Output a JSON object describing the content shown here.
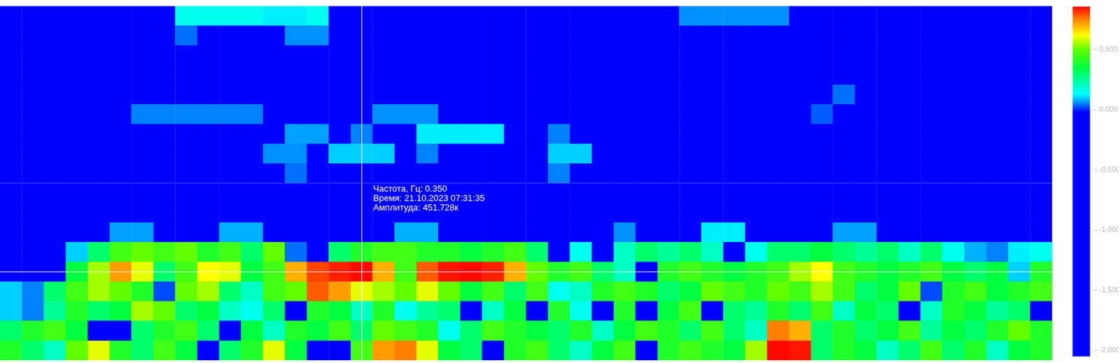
{
  "chart_data": {
    "type": "heatmap",
    "tick_labels": false,
    "grid": false,
    "categories": [
      null,
      null,
      null,
      null,
      null,
      null,
      null,
      null,
      null,
      null,
      null,
      null,
      null,
      null,
      null,
      null,
      null,
      null,
      null,
      null,
      null,
      null,
      null,
      null,
      null,
      null,
      null,
      null,
      null,
      null,
      null,
      null,
      null,
      null,
      null,
      null,
      null,
      null,
      null,
      null,
      null,
      null,
      null,
      null,
      null,
      null,
      null,
      null
    ],
    "y": [
      0.05,
      0.125,
      0.2,
      0.275,
      0.35,
      0.425,
      0.5,
      0.575,
      0.65,
      0.725,
      0.8,
      0.875,
      0.95,
      1.025,
      1.1,
      1.175,
      1.25,
      1.325
    ],
    "ylim": [
      0.0125,
      1.3625
    ],
    "cells": [
      [
        0.4,
        0.3,
        0.2,
        0.5,
        0.6,
        0.4,
        0.3,
        0.45,
        0.35,
        -1,
        0.3,
        0.4,
        0.6,
        0.35,
        -1,
        -1,
        0.45,
        0.72,
        0.75,
        0.6,
        0.35,
        0.3,
        -1,
        0.4,
        0.45,
        0.3,
        0.2,
        0.35,
        0.45,
        -1,
        0.4,
        0.45,
        0.4,
        0.35,
        0.55,
        0.85,
        0.84,
        0.3,
        0.4,
        0.35,
        0.2,
        0.3,
        0.45,
        0.3,
        0.4,
        0.2,
        0.35,
        0.4
      ],
      [
        0.3,
        0.4,
        0.45,
        0.35,
        -1,
        -1,
        0.3,
        0.4,
        0.45,
        0.3,
        -1,
        0.35,
        0.2,
        0.4,
        0.35,
        0.45,
        0.3,
        0.5,
        0.45,
        0.4,
        0.15,
        0.3,
        0.45,
        0.4,
        0.35,
        0.3,
        0.4,
        0.2,
        0.35,
        0.45,
        0.4,
        0.3,
        0.45,
        0.3,
        0.2,
        0.75,
        0.7,
        0.3,
        0.4,
        0.3,
        0.35,
        0.45,
        0.25,
        0.35,
        0.3,
        0.4,
        0.5,
        0.4
      ],
      [
        0.1,
        0.05,
        0.25,
        0.4,
        0.3,
        0.35,
        0.55,
        0.5,
        0.3,
        0.35,
        0.2,
        0.15,
        0.3,
        -1,
        0.4,
        0.35,
        0.2,
        0.4,
        0.15,
        0.25,
        0.3,
        -1,
        0.2,
        0.35,
        -1,
        0.4,
        0.15,
        -1,
        0.4,
        -1,
        0.35,
        0.45,
        -1,
        0.3,
        0.25,
        0.4,
        0.3,
        0.45,
        0.2,
        0.35,
        0.3,
        -1,
        0.2,
        0.4,
        0.35,
        0.25,
        0.3,
        -1
      ],
      [
        0.1,
        0.05,
        0.3,
        0.45,
        0.55,
        0.5,
        0.4,
        0.02,
        0.5,
        0.55,
        0.3,
        0.2,
        0.45,
        0.5,
        0.78,
        0.72,
        0.6,
        0.55,
        0.5,
        0.6,
        0.5,
        0.35,
        0.45,
        0.3,
        0.45,
        0.15,
        0.2,
        0.4,
        0.45,
        0.4,
        0.3,
        0.35,
        0.5,
        0.45,
        0.4,
        0.5,
        0.45,
        0.55,
        0.45,
        0.3,
        0.35,
        0.5,
        0.02,
        0.4,
        0.45,
        0.35,
        0.4,
        0.45
      ],
      [
        -1,
        -1,
        -1,
        0.35,
        0.55,
        0.72,
        0.6,
        0.3,
        0.45,
        0.62,
        0.6,
        0.35,
        0.45,
        0.7,
        0.8,
        0.83,
        0.85,
        0.7,
        0.45,
        0.78,
        0.84,
        0.85,
        0.83,
        0.7,
        0.5,
        0.4,
        0.45,
        0.3,
        0.2,
        -1,
        0.4,
        0.45,
        0.4,
        0.35,
        0.4,
        0.45,
        0.55,
        0.62,
        0.45,
        0.4,
        0.35,
        0.4,
        0.45,
        0.35,
        0.3,
        0.35,
        0.1,
        0.4
      ],
      [
        -1,
        -1,
        -1,
        0.1,
        0.3,
        0.45,
        0.5,
        0.45,
        0.5,
        0.4,
        0.45,
        0.3,
        0.5,
        0.04,
        -1,
        0.3,
        0.4,
        0.45,
        0.45,
        0.4,
        0.4,
        0.35,
        0.4,
        0.45,
        0.3,
        -1,
        0.15,
        -1,
        0.2,
        0.3,
        0.25,
        0.3,
        0.2,
        -1,
        0.15,
        0.3,
        0.3,
        0.35,
        0.3,
        0.25,
        0.3,
        0.2,
        0.3,
        0.15,
        0.08,
        0.05,
        0.12,
        0.15
      ],
      [
        -1,
        -1,
        -1,
        -1,
        -1,
        0.07,
        0.07,
        -1,
        -1,
        -1,
        0.08,
        0.08,
        -1,
        -1,
        -1,
        -1,
        -1,
        -1,
        0.08,
        0.08,
        -1,
        -1,
        -1,
        -1,
        -1,
        -1,
        -1,
        -1,
        0.06,
        -1,
        -1,
        -1,
        0.12,
        0.12,
        -1,
        -1,
        -1,
        -1,
        0.07,
        0.07,
        -1,
        -1,
        -1,
        -1,
        -1,
        -1,
        -1,
        -1
      ],
      [
        -1,
        -1,
        -1,
        -1,
        -1,
        -1,
        -1,
        -1,
        -1,
        -1,
        -1,
        -1,
        -1,
        -1,
        -1,
        -1,
        -1,
        -1,
        -1,
        -1,
        -1,
        -1,
        -1,
        -1,
        -1,
        -1,
        -1,
        -1,
        -1,
        -1,
        -1,
        -1,
        -1,
        -1,
        -1,
        -1,
        -1,
        -1,
        -1,
        -1,
        -1,
        -1,
        -1,
        -1,
        -1,
        -1,
        -1,
        -1
      ],
      [
        -1,
        -1,
        -1,
        -1,
        -1,
        -1,
        -1,
        -1,
        -1,
        -1,
        -1,
        -1,
        -1,
        -1,
        -1,
        -1,
        -1,
        -1,
        -1,
        -1,
        -1,
        -1,
        -1,
        -1,
        -1,
        -1,
        -1,
        -1,
        -1,
        -1,
        -1,
        -1,
        -1,
        -1,
        -1,
        -1,
        -1,
        -1,
        -1,
        -1,
        -1,
        -1,
        -1,
        -1,
        -1,
        -1,
        -1,
        -1
      ],
      [
        -1,
        -1,
        -1,
        -1,
        -1,
        -1,
        -1,
        -1,
        -1,
        -1,
        -1,
        -1,
        -1,
        0.04,
        -1,
        -1,
        -1,
        -1,
        -1,
        -1,
        -1,
        -1,
        -1,
        -1,
        -1,
        0.05,
        -1,
        -1,
        -1,
        -1,
        -1,
        -1,
        -1,
        -1,
        -1,
        -1,
        -1,
        -1,
        -1,
        -1,
        -1,
        -1,
        -1,
        -1,
        -1,
        -1,
        -1,
        -1
      ],
      [
        -1,
        -1,
        -1,
        -1,
        -1,
        -1,
        -1,
        -1,
        -1,
        -1,
        -1,
        -1,
        0.06,
        0.06,
        -1,
        0.1,
        0.1,
        0.1,
        -1,
        0.05,
        -1,
        -1,
        -1,
        -1,
        -1,
        0.1,
        0.1,
        -1,
        -1,
        -1,
        -1,
        -1,
        -1,
        -1,
        -1,
        -1,
        -1,
        -1,
        -1,
        -1,
        -1,
        -1,
        -1,
        -1,
        -1,
        -1,
        -1,
        -1
      ],
      [
        -1,
        -1,
        -1,
        -1,
        -1,
        -1,
        -1,
        -1,
        -1,
        -1,
        -1,
        -1,
        -1,
        0.07,
        0.07,
        -1,
        0.05,
        -1,
        -1,
        0.12,
        0.12,
        0.12,
        0.12,
        -1,
        -1,
        0.05,
        -1,
        -1,
        -1,
        -1,
        -1,
        -1,
        -1,
        -1,
        -1,
        -1,
        -1,
        -1,
        -1,
        -1,
        -1,
        -1,
        -1,
        -1,
        -1,
        -1,
        -1,
        -1
      ],
      [
        -1,
        -1,
        -1,
        -1,
        -1,
        -1,
        0.05,
        0.05,
        0.05,
        0.05,
        0.05,
        0.05,
        -1,
        -1,
        -1,
        -1,
        -1,
        0.06,
        0.06,
        0.06,
        -1,
        -1,
        -1,
        -1,
        -1,
        -1,
        -1,
        -1,
        -1,
        -1,
        -1,
        -1,
        -1,
        -1,
        -1,
        -1,
        -1,
        0.03,
        -1,
        -1,
        -1,
        -1,
        -1,
        -1,
        -1,
        -1,
        -1,
        -1
      ],
      [
        -1,
        -1,
        -1,
        -1,
        -1,
        -1,
        -1,
        -1,
        -1,
        -1,
        -1,
        -1,
        -1,
        -1,
        -1,
        -1,
        -1,
        -1,
        -1,
        -1,
        -1,
        -1,
        -1,
        -1,
        -1,
        -1,
        -1,
        -1,
        -1,
        -1,
        -1,
        -1,
        -1,
        -1,
        -1,
        -1,
        -1,
        -1,
        0.04,
        -1,
        -1,
        -1,
        -1,
        -1,
        -1,
        -1,
        -1,
        -1
      ],
      [
        -1,
        -1,
        -1,
        -1,
        -1,
        -1,
        -1,
        -1,
        -1,
        -1,
        -1,
        -1,
        -1,
        -1,
        -1,
        -1,
        -1,
        -1,
        -1,
        -1,
        -1,
        -1,
        -1,
        -1,
        -1,
        -1,
        -1,
        -1,
        -1,
        -1,
        -1,
        -1,
        -1,
        -1,
        -1,
        -1,
        -1,
        -1,
        -1,
        -1,
        -1,
        -1,
        -1,
        -1,
        -1,
        -1,
        -1,
        -1
      ],
      [
        -1,
        -1,
        -1,
        -1,
        -1,
        -1,
        -1,
        -1,
        -1,
        -1,
        -1,
        -1,
        -1,
        -1,
        -1,
        -1,
        -1,
        -1,
        -1,
        -1,
        -1,
        -1,
        -1,
        -1,
        -1,
        -1,
        -1,
        -1,
        -1,
        -1,
        -1,
        -1,
        -1,
        -1,
        -1,
        -1,
        -1,
        -1,
        -1,
        -1,
        -1,
        -1,
        -1,
        -1,
        -1,
        -1,
        -1,
        -1
      ],
      [
        -1,
        -1,
        -1,
        -1,
        -1,
        -1,
        -1,
        -1,
        0.04,
        -1,
        -1,
        -1,
        -1,
        0.06,
        0.06,
        -1,
        -1,
        -1,
        -1,
        -1,
        -1,
        -1,
        -1,
        -1,
        -1,
        -1,
        -1,
        -1,
        -1,
        -1,
        -1,
        -1,
        -1,
        -1,
        -1,
        -1,
        -1,
        -1,
        -1,
        -1,
        -1,
        -1,
        -1,
        -1,
        -1,
        -1,
        -1,
        -1
      ],
      [
        -1,
        -1,
        -1,
        -1,
        -1,
        -1,
        -1,
        -1,
        0.15,
        0.15,
        0.15,
        0.15,
        0.12,
        0.12,
        0.15,
        -1,
        -1,
        -1,
        -1,
        -1,
        -1,
        -1,
        -1,
        -1,
        -1,
        -1,
        -1,
        -1,
        -1,
        -1,
        -1,
        0.06,
        0.06,
        0.06,
        0.06,
        0.06,
        -1,
        -1,
        -1,
        -1,
        -1,
        -1,
        -1,
        -1,
        -1,
        -1,
        -1,
        -1
      ]
    ],
    "colorbar": {
      "range": [
        -2.05,
        0.857
      ],
      "ticks": [
        {
          "value": -2,
          "label": "-2.000"
        },
        {
          "value": -1.5,
          "label": "-1.500"
        },
        {
          "value": -1,
          "label": "-1.000"
        },
        {
          "value": -0.5,
          "label": "-0.500"
        },
        {
          "value": 0,
          "label": "0.000"
        },
        {
          "value": 0.5,
          "label": "0.500"
        }
      ]
    },
    "crosshair": {
      "x": 16,
      "y": 0.35,
      "text": [
        "Частота, Гц: 0.350",
        "Время: 21.10.2023 07:31:35",
        "Амплитуда: 451.728к"
      ]
    }
  }
}
